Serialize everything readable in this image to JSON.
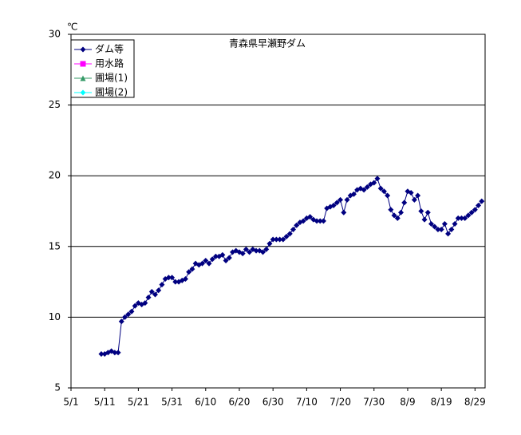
{
  "chart_data": {
    "type": "line",
    "title": "青森県早瀬野ダム",
    "y_unit": "℃",
    "x": [
      "5/10",
      "5/11",
      "5/12",
      "5/13",
      "5/14",
      "5/15",
      "5/16",
      "5/17",
      "5/18",
      "5/19",
      "5/20",
      "5/21",
      "5/22",
      "5/23",
      "5/24",
      "5/25",
      "5/26",
      "5/27",
      "5/28",
      "5/29",
      "5/30",
      "5/31",
      "6/1",
      "6/2",
      "6/3",
      "6/4",
      "6/5",
      "6/6",
      "6/7",
      "6/8",
      "6/9",
      "6/10",
      "6/11",
      "6/12",
      "6/13",
      "6/14",
      "6/15",
      "6/16",
      "6/17",
      "6/18",
      "6/19",
      "6/20",
      "6/21",
      "6/22",
      "6/23",
      "6/24",
      "6/25",
      "6/26",
      "6/27",
      "6/28",
      "6/29",
      "6/30",
      "7/1",
      "7/2",
      "7/3",
      "7/4",
      "7/5",
      "7/6",
      "7/7",
      "7/8",
      "7/9",
      "7/10",
      "7/11",
      "7/12",
      "7/13",
      "7/14",
      "7/15",
      "7/16",
      "7/17",
      "7/18",
      "7/19",
      "7/20",
      "7/21",
      "7/22",
      "7/23",
      "7/24",
      "7/25",
      "7/26",
      "7/27",
      "7/28",
      "7/29",
      "7/30",
      "7/31",
      "8/1",
      "8/2",
      "8/3",
      "8/4",
      "8/5",
      "8/6",
      "8/7",
      "8/8",
      "8/9",
      "8/10",
      "8/11",
      "8/12",
      "8/13",
      "8/14",
      "8/15",
      "8/16",
      "8/17",
      "8/18",
      "8/19",
      "8/20",
      "8/21",
      "8/22",
      "8/23",
      "8/24",
      "8/25",
      "8/26",
      "8/27",
      "8/28",
      "8/29",
      "8/30",
      "8/31"
    ],
    "series": [
      {
        "name": "ダム等",
        "color": "#000080",
        "marker": "diamond",
        "values": [
          7.4,
          7.4,
          7.5,
          7.6,
          7.5,
          7.5,
          9.7,
          10.0,
          10.2,
          10.4,
          10.8,
          11.0,
          10.9,
          11.0,
          11.4,
          11.8,
          11.6,
          11.9,
          12.3,
          12.7,
          12.8,
          12.8,
          12.5,
          12.5,
          12.6,
          12.7,
          13.2,
          13.4,
          13.8,
          13.7,
          13.8,
          14.0,
          13.8,
          14.1,
          14.3,
          14.3,
          14.4,
          14.0,
          14.2,
          14.6,
          14.7,
          14.6,
          14.5,
          14.8,
          14.6,
          14.8,
          14.7,
          14.7,
          14.6,
          14.8,
          15.2,
          15.5,
          15.5,
          15.5,
          15.5,
          15.7,
          15.9,
          16.2,
          16.5,
          16.7,
          16.8,
          17.0,
          17.1,
          16.9,
          16.8,
          16.8,
          16.8,
          17.7,
          17.8,
          17.9,
          18.1,
          18.3,
          17.4,
          18.3,
          18.6,
          18.7,
          19.0,
          19.1,
          19.0,
          19.2,
          19.4,
          19.5,
          19.8,
          19.1,
          18.9,
          18.6,
          17.6,
          17.2,
          17.0,
          17.4,
          18.1,
          18.9,
          18.8,
          18.3,
          18.6,
          17.5,
          16.9,
          17.4,
          16.6,
          16.4,
          16.2,
          16.2,
          16.6,
          15.9,
          16.2,
          16.6,
          17.0,
          17.0,
          17.0,
          17.2,
          17.4,
          17.6,
          17.9,
          18.2
        ]
      },
      {
        "name": "用水路",
        "color": "#ff00ff",
        "marker": "square"
      },
      {
        "name": "圃場(1)",
        "color": "#339966",
        "marker": "triangle"
      },
      {
        "name": "圃場(2)",
        "color": "#00ffff",
        "marker": "diamond"
      }
    ],
    "xlim": [
      "5/1",
      "9/1"
    ],
    "xticks": [
      "5/1",
      "5/11",
      "5/21",
      "5/31",
      "6/10",
      "6/20",
      "6/30",
      "7/10",
      "7/20",
      "7/30",
      "8/9",
      "8/19",
      "8/29"
    ],
    "ylim": [
      5,
      30
    ],
    "yticks": [
      5,
      10,
      15,
      20,
      25,
      30
    ],
    "grid": true,
    "legend": "top-left"
  }
}
